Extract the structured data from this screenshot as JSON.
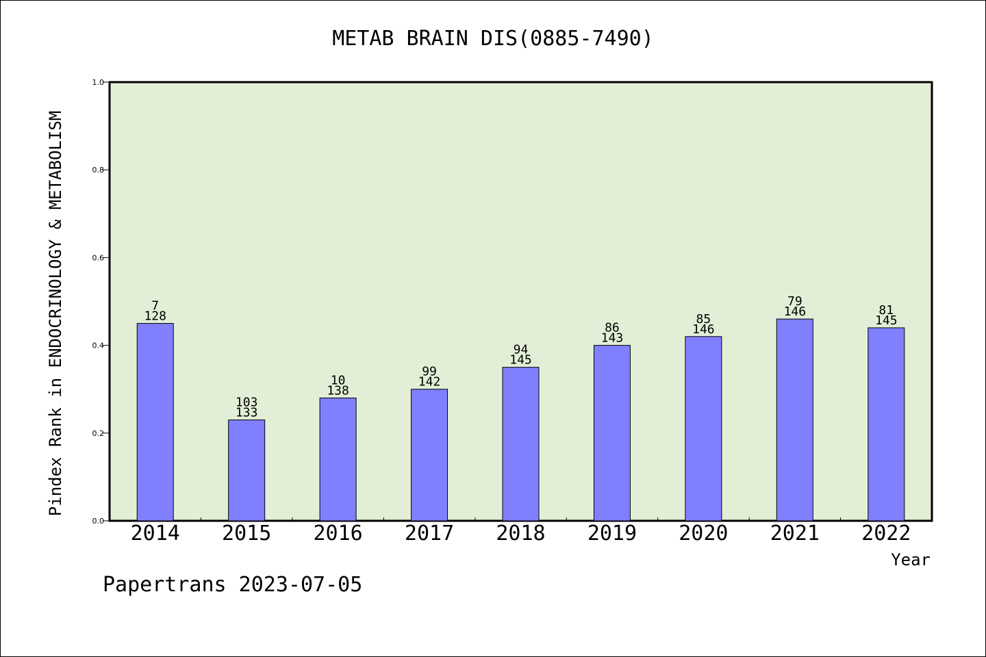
{
  "footer_text": "Papertrans 2023-07-05",
  "colors": {
    "plot_background": "#e2efd6",
    "bar_fill": "#8080ff",
    "bar_stroke": "#000000",
    "axis": "#000000"
  },
  "chart_data": {
    "type": "bar",
    "title": "METAB BRAIN DIS(0885-7490)",
    "xlabel": "Year",
    "ylabel": "Pindex Rank in ENDOCRINOLOGY & METABOLISM",
    "categories": [
      "2014",
      "2015",
      "2016",
      "2017",
      "2018",
      "2019",
      "2020",
      "2021",
      "2022"
    ],
    "values": [
      0.45,
      0.23,
      0.28,
      0.3,
      0.35,
      0.4,
      0.42,
      0.46,
      0.44
    ],
    "rank_labels": [
      "7",
      "103",
      "10",
      "99",
      "94",
      "86",
      "85",
      "79",
      "81"
    ],
    "total_labels": [
      "128",
      "133",
      "138",
      "142",
      "145",
      "143",
      "146",
      "146",
      "145"
    ],
    "ylim": [
      0,
      1.0
    ],
    "yticks": [
      "0.0",
      "0.2",
      "0.4",
      "0.6",
      "0.8",
      "1.0"
    ],
    "grid": false,
    "legend": "none"
  }
}
